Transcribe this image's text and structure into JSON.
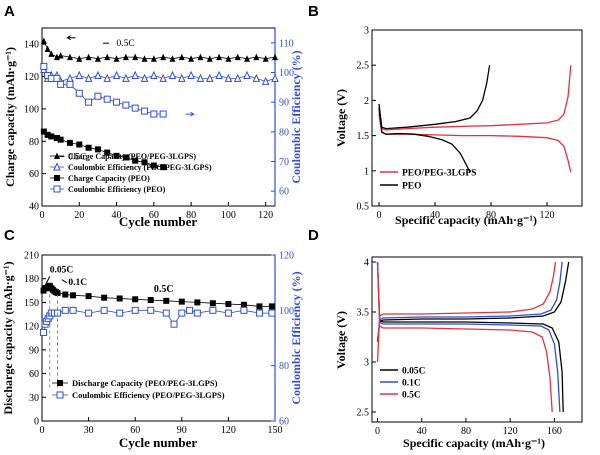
{
  "chart_data": [
    {
      "panel": "A",
      "type": "line",
      "xlabel": "Cycle number",
      "ylabel": "Charge capacity (mAh·g⁻¹)",
      "y2label": "Coulombic Efficiency (%)",
      "xlim": [
        0,
        125
      ],
      "ylim": [
        40,
        150
      ],
      "y2lim": [
        55,
        115
      ],
      "xticks": [
        0,
        20,
        40,
        60,
        80,
        100,
        120
      ],
      "yticks": [
        40,
        60,
        80,
        100,
        120,
        140
      ],
      "y2ticks": [
        60,
        70,
        80,
        90,
        100,
        110
      ],
      "annotations": [
        "0.5C",
        "0.5C"
      ],
      "series": [
        {
          "name": "Charge Capacity (PEO/PEG-3LGPS)",
          "axis": "left",
          "marker": "filled-triangle",
          "color": "#000000",
          "x": [
            1,
            3,
            5,
            8,
            10,
            15,
            20,
            25,
            30,
            35,
            40,
            45,
            50,
            55,
            60,
            65,
            70,
            75,
            80,
            85,
            90,
            95,
            100,
            105,
            110,
            115,
            120,
            125
          ],
          "y": [
            142,
            137,
            134,
            132,
            133,
            132,
            131,
            132,
            131,
            132,
            131,
            132,
            132,
            131,
            131,
            132,
            131,
            132,
            131,
            132,
            131,
            132,
            131,
            132,
            131,
            132,
            131,
            132
          ]
        },
        {
          "name": "Coulombic Efficiency (PEO/PEG-3LGPS)",
          "axis": "right",
          "marker": "open-triangle",
          "color": "#2f4fd8",
          "x": [
            1,
            3,
            5,
            8,
            10,
            15,
            20,
            25,
            30,
            35,
            40,
            45,
            50,
            55,
            60,
            65,
            70,
            75,
            80,
            85,
            90,
            95,
            100,
            105,
            110,
            115,
            120,
            125
          ],
          "y": [
            101,
            98,
            99,
            99,
            97,
            98,
            99,
            98,
            99,
            98,
            99,
            98,
            99,
            98,
            99,
            98,
            99,
            98,
            99,
            98,
            98,
            99,
            98,
            98,
            99,
            98,
            97,
            98
          ]
        },
        {
          "name": "Charge Capacity (PEO)",
          "axis": "left",
          "marker": "filled-square",
          "color": "#000000",
          "x": [
            1,
            3,
            5,
            8,
            10,
            15,
            20,
            25,
            30,
            35,
            40,
            45,
            50,
            55,
            60,
            65
          ],
          "y": [
            86,
            84,
            83,
            82,
            81,
            79,
            78,
            76,
            75,
            73,
            71,
            70,
            68,
            67,
            65,
            64
          ]
        },
        {
          "name": "Coulombic Efficiency (PEO)",
          "axis": "right",
          "marker": "open-square",
          "color": "#2f4fd8",
          "x": [
            1,
            3,
            5,
            8,
            10,
            15,
            20,
            25,
            30,
            35,
            40,
            45,
            50,
            55,
            60,
            65
          ],
          "y": [
            102,
            99,
            98,
            98,
            96,
            96,
            93,
            90,
            92,
            91,
            90,
            89,
            88,
            87,
            86,
            86
          ]
        }
      ]
    },
    {
      "panel": "B",
      "type": "line",
      "xlabel": "Specific capacity (mAh·g⁻¹)",
      "ylabel": "Voltage (V)",
      "xlim": [
        -5,
        145
      ],
      "ylim": [
        0.5,
        3.0
      ],
      "xticks": [
        0,
        40,
        80,
        120
      ],
      "yticks": [
        0.5,
        1.0,
        1.5,
        2.0,
        2.5,
        3.0
      ],
      "series": [
        {
          "name": "PEO/PEG-3LGPS",
          "color": "#e83040",
          "part": "charge",
          "x": [
            0,
            2,
            5,
            20,
            40,
            60,
            80,
            100,
            120,
            128,
            132,
            135,
            137
          ],
          "y": [
            1.85,
            1.6,
            1.58,
            1.6,
            1.62,
            1.63,
            1.64,
            1.66,
            1.68,
            1.72,
            1.8,
            2.05,
            2.5
          ]
        },
        {
          "name": "PEO/PEG-3LGPS",
          "color": "#e83040",
          "part": "discharge",
          "x": [
            0,
            2,
            5,
            20,
            40,
            60,
            80,
            100,
            120,
            128,
            132,
            135,
            137
          ],
          "y": [
            1.8,
            1.55,
            1.52,
            1.52,
            1.51,
            1.5,
            1.5,
            1.49,
            1.47,
            1.43,
            1.35,
            1.15,
            0.98
          ]
        },
        {
          "name": "PEO",
          "color": "#000000",
          "part": "charge",
          "x": [
            0,
            2,
            5,
            20,
            40,
            55,
            65,
            70,
            74,
            77,
            79
          ],
          "y": [
            1.95,
            1.62,
            1.6,
            1.62,
            1.66,
            1.7,
            1.75,
            1.85,
            2.0,
            2.25,
            2.5
          ]
        },
        {
          "name": "PEO",
          "color": "#000000",
          "part": "discharge",
          "x": [
            0,
            2,
            5,
            15,
            25,
            35,
            45,
            52,
            58,
            62,
            65
          ],
          "y": [
            1.9,
            1.55,
            1.52,
            1.53,
            1.52,
            1.49,
            1.44,
            1.38,
            1.25,
            1.1,
            0.98
          ]
        }
      ]
    },
    {
      "panel": "C",
      "type": "line",
      "xlabel": "Cycle number",
      "ylabel": "Discharge capacity (mAh·g⁻¹)",
      "y2label": "Coulombic Efficiency (%)",
      "xlim": [
        0,
        150
      ],
      "ylim": [
        0,
        210
      ],
      "y2lim": [
        60,
        120
      ],
      "xticks": [
        0,
        30,
        60,
        90,
        120,
        150
      ],
      "yticks": [
        0,
        30,
        60,
        90,
        120,
        150,
        180,
        210
      ],
      "y2ticks": [
        60,
        80,
        100,
        120
      ],
      "annotations": [
        "0.05C",
        "0.1C",
        "0.5C"
      ],
      "series": [
        {
          "name": "Discharge Capacity (PEO/PEG-3LGPS)",
          "axis": "left",
          "marker": "filled-square",
          "color": "#000000",
          "x": [
            1,
            2,
            3,
            4,
            5,
            6,
            7,
            8,
            9,
            10,
            15,
            20,
            30,
            40,
            50,
            60,
            70,
            80,
            90,
            100,
            110,
            120,
            130,
            140,
            148
          ],
          "y": [
            165,
            168,
            168,
            170,
            171,
            168,
            166,
            164,
            163,
            162,
            160,
            159,
            158,
            156,
            155,
            154,
            153,
            152,
            151,
            150,
            149,
            148,
            147,
            145,
            145
          ]
        },
        {
          "name": "Coulombic Efficiency (PEO/PEG-3LGPS)",
          "axis": "right",
          "marker": "open-square",
          "color": "#2f4fd8",
          "x": [
            1,
            2,
            3,
            4,
            5,
            6,
            8,
            10,
            15,
            20,
            30,
            40,
            50,
            60,
            70,
            80,
            85,
            90,
            95,
            100,
            110,
            120,
            130,
            140,
            148
          ],
          "y": [
            92,
            95,
            96,
            97,
            98,
            99,
            99,
            99,
            100,
            100,
            99,
            100,
            99,
            100,
            100,
            99,
            95,
            99,
            100,
            99,
            100,
            99,
            100,
            99,
            99
          ]
        }
      ]
    },
    {
      "panel": "D",
      "type": "line",
      "xlabel": "Specific capacity (mAh·g⁻¹)",
      "ylabel": "Voltage (V)",
      "xlim": [
        -5,
        185
      ],
      "ylim": [
        2.4,
        4.05
      ],
      "xticks": [
        0,
        40,
        80,
        120,
        160
      ],
      "yticks": [
        2.5,
        3.0,
        3.5,
        4.0
      ],
      "series": [
        {
          "name": "0.05C",
          "color": "#000000",
          "part": "charge",
          "x": [
            0,
            2,
            5,
            40,
            80,
            120,
            150,
            160,
            166,
            170,
            173
          ],
          "y": [
            3.2,
            3.4,
            3.42,
            3.43,
            3.43,
            3.44,
            3.46,
            3.5,
            3.6,
            3.8,
            4.0
          ]
        },
        {
          "name": "0.05C",
          "color": "#000000",
          "part": "discharge",
          "x": [
            0,
            2,
            5,
            40,
            80,
            120,
            150,
            158,
            164,
            167,
            168
          ],
          "y": [
            4.0,
            3.42,
            3.4,
            3.4,
            3.4,
            3.39,
            3.38,
            3.34,
            3.2,
            2.9,
            2.5
          ]
        },
        {
          "name": "0.1C",
          "color": "#2f4fd8",
          "part": "charge",
          "x": [
            0,
            2,
            5,
            40,
            80,
            120,
            148,
            157,
            162,
            165,
            167
          ],
          "y": [
            3.2,
            3.42,
            3.44,
            3.45,
            3.45,
            3.46,
            3.48,
            3.52,
            3.62,
            3.8,
            4.0
          ]
        },
        {
          "name": "0.1C",
          "color": "#2f4fd8",
          "part": "discharge",
          "x": [
            0,
            2,
            5,
            40,
            80,
            120,
            148,
            155,
            160,
            163,
            165
          ],
          "y": [
            4.0,
            3.4,
            3.38,
            3.38,
            3.38,
            3.37,
            3.36,
            3.32,
            3.18,
            2.9,
            2.5
          ]
        },
        {
          "name": "0.5C",
          "color": "#e83040",
          "part": "charge",
          "x": [
            0,
            2,
            5,
            40,
            80,
            120,
            140,
            150,
            156,
            159,
            161
          ],
          "y": [
            3.0,
            3.46,
            3.48,
            3.48,
            3.49,
            3.5,
            3.53,
            3.58,
            3.7,
            3.85,
            4.0
          ]
        },
        {
          "name": "0.5C",
          "color": "#e83040",
          "part": "discharge",
          "x": [
            0,
            2,
            5,
            40,
            80,
            120,
            140,
            149,
            153,
            156,
            158
          ],
          "y": [
            4.0,
            3.36,
            3.34,
            3.34,
            3.33,
            3.32,
            3.3,
            3.25,
            3.1,
            2.85,
            2.5
          ]
        }
      ]
    }
  ]
}
